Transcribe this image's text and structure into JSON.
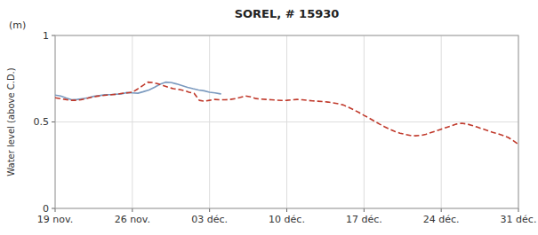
{
  "chart_data": {
    "type": "line",
    "title": "SOREL, # 15930",
    "ylabel": "Water level (above C.D.)",
    "annotations": [
      "(m)"
    ],
    "xlim": [
      0,
      42
    ],
    "xticks": [
      {
        "value": 0,
        "label": "19 nov."
      },
      {
        "value": 7,
        "label": "26 nov."
      },
      {
        "value": 14,
        "label": "03 déc."
      },
      {
        "value": 21,
        "label": "10 déc."
      },
      {
        "value": 28,
        "label": "17 déc."
      },
      {
        "value": 35,
        "label": "24 déc."
      },
      {
        "value": 42,
        "label": "31 déc."
      }
    ],
    "ylim": [
      0,
      1.0
    ],
    "yticks": [
      0,
      0.5,
      1
    ],
    "grid": true,
    "series": [
      {
        "color": "#7b9abf",
        "line_style": "solid",
        "x": [
          0,
          0.5,
          1,
          1.5,
          2,
          2.5,
          3,
          3.5,
          4,
          4.5,
          5,
          5.5,
          6,
          6.5,
          7,
          7.5,
          8,
          8.5,
          9,
          9.5,
          10,
          10.5,
          11,
          11.5,
          12,
          12.5,
          13,
          13.5,
          14,
          14.5,
          15
        ],
        "values": [
          0.655,
          0.65,
          0.638,
          0.628,
          0.63,
          0.635,
          0.64,
          0.648,
          0.652,
          0.658,
          0.658,
          0.66,
          0.662,
          0.67,
          0.668,
          0.666,
          0.675,
          0.685,
          0.7,
          0.718,
          0.73,
          0.728,
          0.72,
          0.71,
          0.7,
          0.692,
          0.685,
          0.68,
          0.672,
          0.668,
          0.662
        ]
      },
      {
        "color": "#c0392b",
        "line_style": "dashed",
        "x": [
          0,
          0.4666666666666667,
          0.9333333333333333,
          1.4,
          1.8666666666666667,
          2.3333333333333335,
          2.8,
          3.2666666666666666,
          3.7333333333333334,
          4.2,
          4.666666666666667,
          5.133333333333334,
          5.6,
          6.066666666666666,
          6.533333333333333,
          7,
          7.466666666666667,
          7.933333333333334,
          8.4,
          8.866666666666667,
          9.333333333333334,
          9.8,
          10.266666666666667,
          10.733333333333333,
          11.2,
          11.666666666666666,
          12.133333333333333,
          12.6,
          13.066666666666666,
          13.533333333333333,
          14,
          14.466666666666667,
          14.933333333333334,
          15.4,
          15.866666666666667,
          16.333333333333332,
          16.8,
          17.266666666666666,
          17.733333333333334,
          18.2,
          18.666666666666668,
          19.133333333333333,
          19.6,
          20.066666666666666,
          20.533333333333335,
          21,
          21.466666666666665,
          21.933333333333334,
          22.4,
          22.866666666666667,
          23.333333333333332,
          23.8,
          24.266666666666666,
          24.733333333333334,
          25.2,
          25.666666666666668,
          26.133333333333333,
          26.6,
          27.066666666666666,
          27.533333333333335,
          28,
          28.466666666666665,
          28.933333333333334,
          29.4,
          29.866666666666667,
          30.333333333333332,
          30.8,
          31.266666666666666,
          31.733333333333334,
          32.2,
          32.666666666666664,
          33.13333333333333,
          33.6,
          34.06666666666667,
          34.53333333333333,
          35,
          35.46666666666667,
          35.93333333333333,
          36.4,
          36.86666666666667,
          37.333333333333336,
          37.8,
          38.266666666666666,
          38.733333333333334,
          39.2,
          39.666666666666664,
          40.13333333333333,
          40.6,
          41.06666666666667,
          41.53333333333333,
          42
        ],
        "values": [
          0.64,
          0.635,
          0.63,
          0.625,
          0.625,
          0.628,
          0.635,
          0.642,
          0.648,
          0.652,
          0.655,
          0.658,
          0.66,
          0.665,
          0.668,
          0.672,
          0.69,
          0.71,
          0.73,
          0.728,
          0.72,
          0.71,
          0.7,
          0.692,
          0.688,
          0.682,
          0.672,
          0.665,
          0.625,
          0.62,
          0.625,
          0.63,
          0.628,
          0.628,
          0.63,
          0.635,
          0.642,
          0.65,
          0.645,
          0.635,
          0.632,
          0.63,
          0.628,
          0.626,
          0.624,
          0.625,
          0.628,
          0.63,
          0.628,
          0.625,
          0.622,
          0.62,
          0.618,
          0.615,
          0.61,
          0.605,
          0.598,
          0.585,
          0.57,
          0.555,
          0.538,
          0.522,
          0.505,
          0.488,
          0.472,
          0.458,
          0.445,
          0.435,
          0.428,
          0.422,
          0.42,
          0.422,
          0.428,
          0.438,
          0.448,
          0.458,
          0.468,
          0.478,
          0.488,
          0.492,
          0.488,
          0.48,
          0.47,
          0.46,
          0.45,
          0.44,
          0.432,
          0.422,
          0.41,
          0.392,
          0.37
        ]
      }
    ]
  }
}
